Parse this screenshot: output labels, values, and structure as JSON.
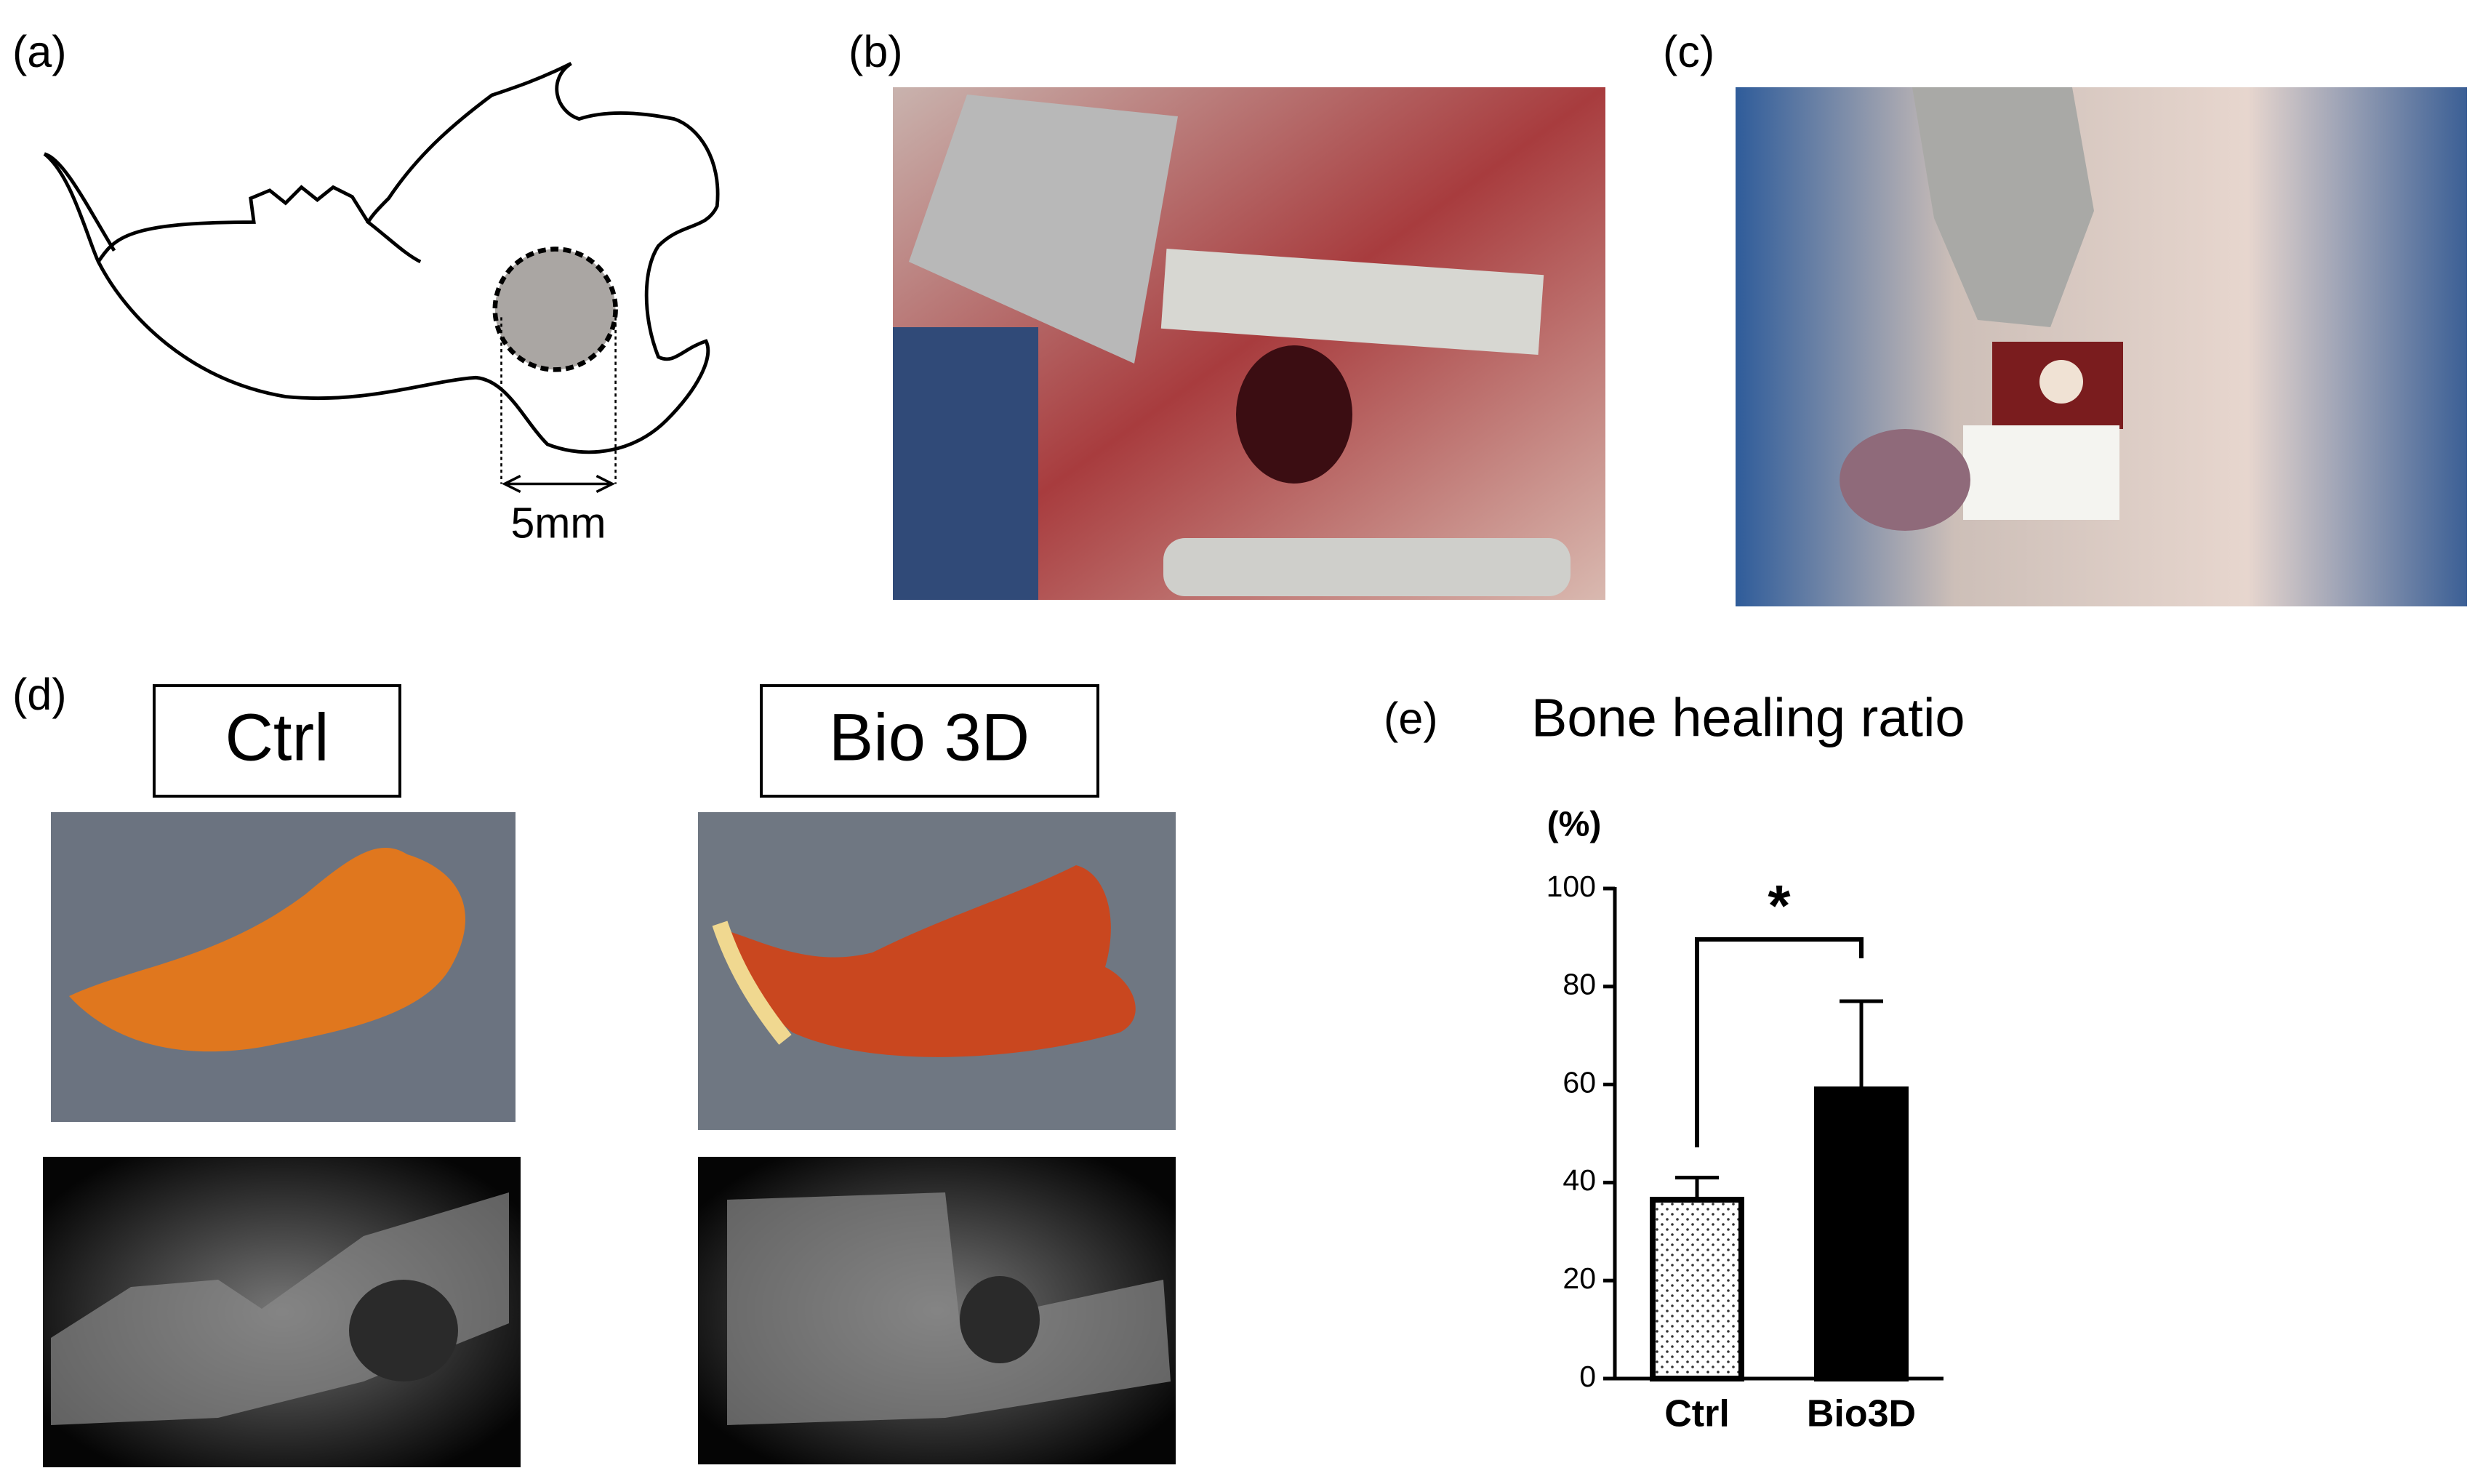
{
  "panels": {
    "a": {
      "label": "(a)",
      "scale_label": "5mm"
    },
    "b": {
      "label": "(b)"
    },
    "c": {
      "label": "(c)"
    },
    "d": {
      "label": "(d)",
      "groups": [
        "Ctrl",
        "Bio 3D"
      ]
    },
    "e": {
      "label": "(e)"
    }
  },
  "chart_data": {
    "type": "bar",
    "title": "Bone healing ratio",
    "y_label": "(%)",
    "categories": [
      "Ctrl",
      "Bio3D"
    ],
    "values": [
      36.5,
      59
    ],
    "errors": [
      4.5,
      18
    ],
    "colors": [
      "#ffffff",
      "#000000"
    ],
    "patterns": [
      "dotted",
      "solid"
    ],
    "ylim": [
      0,
      100
    ],
    "yticks": [
      0,
      20,
      40,
      60,
      80,
      100
    ],
    "annotation": "*"
  }
}
